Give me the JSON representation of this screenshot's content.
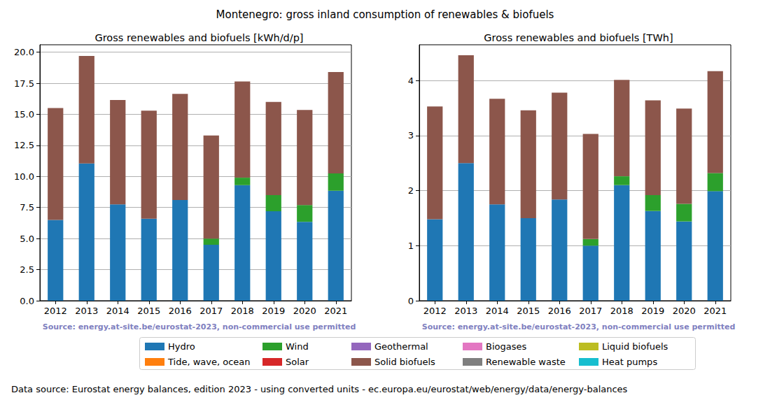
{
  "title": "Montenegro: gross inland consumption of renewables & biofuels",
  "footnote": "Data source: Eurostat energy balances, edition 2023 - using converted units - ec.europa.eu/eurostat/web/energy/data/energy-balances",
  "legend": "bottom",
  "chart_data": [
    {
      "type": "bar",
      "title": "Gross renewables and biofuels [kWh/d/p]",
      "source": "Source: energy.at-site.be/eurostat-2023, non-commercial use permitted",
      "stacked": true,
      "grid": true,
      "categories": [
        "2012",
        "2013",
        "2014",
        "2015",
        "2016",
        "2017",
        "2018",
        "2019",
        "2020",
        "2021"
      ],
      "ylim": [
        0,
        20.6
      ],
      "yticks": [
        {
          "value": 0,
          "label": "0.0"
        },
        2.5,
        {
          "value": 5,
          "label": "5.0"
        },
        7.5,
        {
          "value": 10,
          "label": "10.0"
        },
        12.5,
        {
          "value": 15,
          "label": "15.0"
        },
        17.5,
        {
          "value": 20,
          "label": "20.0"
        }
      ],
      "series": [
        {
          "name": "Hydro",
          "color": "#1f77b4",
          "values": [
            6.5,
            11.05,
            7.75,
            6.6,
            8.1,
            4.5,
            9.3,
            7.2,
            6.35,
            8.85
          ]
        },
        {
          "name": "Tide, wave, ocean",
          "color": "#ff7f0e",
          "values": [
            0,
            0,
            0,
            0,
            0,
            0,
            0,
            0,
            0,
            0
          ]
        },
        {
          "name": "Wind",
          "color": "#2ca02c",
          "values": [
            0,
            0,
            0,
            0,
            0,
            0.5,
            0.6,
            1.3,
            1.35,
            1.4
          ]
        },
        {
          "name": "Solar",
          "color": "#d62728",
          "values": [
            0,
            0,
            0,
            0,
            0,
            0,
            0,
            0,
            0,
            0
          ]
        },
        {
          "name": "Geothermal",
          "color": "#9467bd",
          "values": [
            0,
            0,
            0,
            0,
            0,
            0,
            0,
            0,
            0,
            0
          ]
        },
        {
          "name": "Solid biofuels",
          "color": "#8c564b",
          "values": [
            9.0,
            8.65,
            8.4,
            8.7,
            8.55,
            8.3,
            7.75,
            7.5,
            7.65,
            8.15
          ]
        },
        {
          "name": "Biogases",
          "color": "#e377c2",
          "values": [
            0,
            0,
            0,
            0,
            0,
            0,
            0,
            0,
            0,
            0
          ]
        },
        {
          "name": "Renewable waste",
          "color": "#7f7f7f",
          "values": [
            0,
            0,
            0,
            0,
            0,
            0,
            0,
            0,
            0,
            0
          ]
        },
        {
          "name": "Liquid biofuels",
          "color": "#bcbd22",
          "values": [
            0,
            0,
            0,
            0,
            0,
            0,
            0,
            0,
            0,
            0
          ]
        },
        {
          "name": "Heat pumps",
          "color": "#17becf",
          "values": [
            0,
            0,
            0,
            0,
            0,
            0,
            0,
            0,
            0,
            0
          ]
        }
      ]
    },
    {
      "type": "bar",
      "title": "Gross renewables and biofuels [TWh]",
      "source": "Source: energy.at-site.be/eurostat-2023, non-commercial use permitted",
      "stacked": true,
      "grid": true,
      "categories": [
        "2012",
        "2013",
        "2014",
        "2015",
        "2016",
        "2017",
        "2018",
        "2019",
        "2020",
        "2021"
      ],
      "ylim": [
        0,
        4.65
      ],
      "yticks": [
        0,
        1,
        2,
        3,
        4
      ],
      "series": [
        {
          "name": "Hydro",
          "color": "#1f77b4",
          "values": [
            1.48,
            2.5,
            1.75,
            1.5,
            1.84,
            1.0,
            2.1,
            1.63,
            1.44,
            1.99
          ]
        },
        {
          "name": "Tide, wave, ocean",
          "color": "#ff7f0e",
          "values": [
            0,
            0,
            0,
            0,
            0,
            0,
            0,
            0,
            0,
            0
          ]
        },
        {
          "name": "Wind",
          "color": "#2ca02c",
          "values": [
            0,
            0,
            0,
            0,
            0,
            0.12,
            0.16,
            0.29,
            0.32,
            0.33
          ]
        },
        {
          "name": "Solar",
          "color": "#d62728",
          "values": [
            0,
            0,
            0,
            0,
            0,
            0,
            0,
            0,
            0,
            0
          ]
        },
        {
          "name": "Geothermal",
          "color": "#9467bd",
          "values": [
            0,
            0,
            0,
            0,
            0,
            0,
            0,
            0,
            0,
            0
          ]
        },
        {
          "name": "Solid biofuels",
          "color": "#8c564b",
          "values": [
            2.05,
            1.96,
            1.92,
            1.96,
            1.94,
            1.91,
            1.75,
            1.72,
            1.73,
            1.85
          ]
        },
        {
          "name": "Biogases",
          "color": "#e377c2",
          "values": [
            0,
            0,
            0,
            0,
            0,
            0,
            0,
            0,
            0,
            0
          ]
        },
        {
          "name": "Renewable waste",
          "color": "#7f7f7f",
          "values": [
            0,
            0,
            0,
            0,
            0,
            0,
            0,
            0,
            0,
            0
          ]
        },
        {
          "name": "Liquid biofuels",
          "color": "#bcbd22",
          "values": [
            0,
            0,
            0,
            0,
            0,
            0,
            0,
            0,
            0,
            0
          ]
        },
        {
          "name": "Heat pumps",
          "color": "#17becf",
          "values": [
            0,
            0,
            0,
            0,
            0,
            0,
            0,
            0,
            0,
            0
          ]
        }
      ]
    }
  ]
}
